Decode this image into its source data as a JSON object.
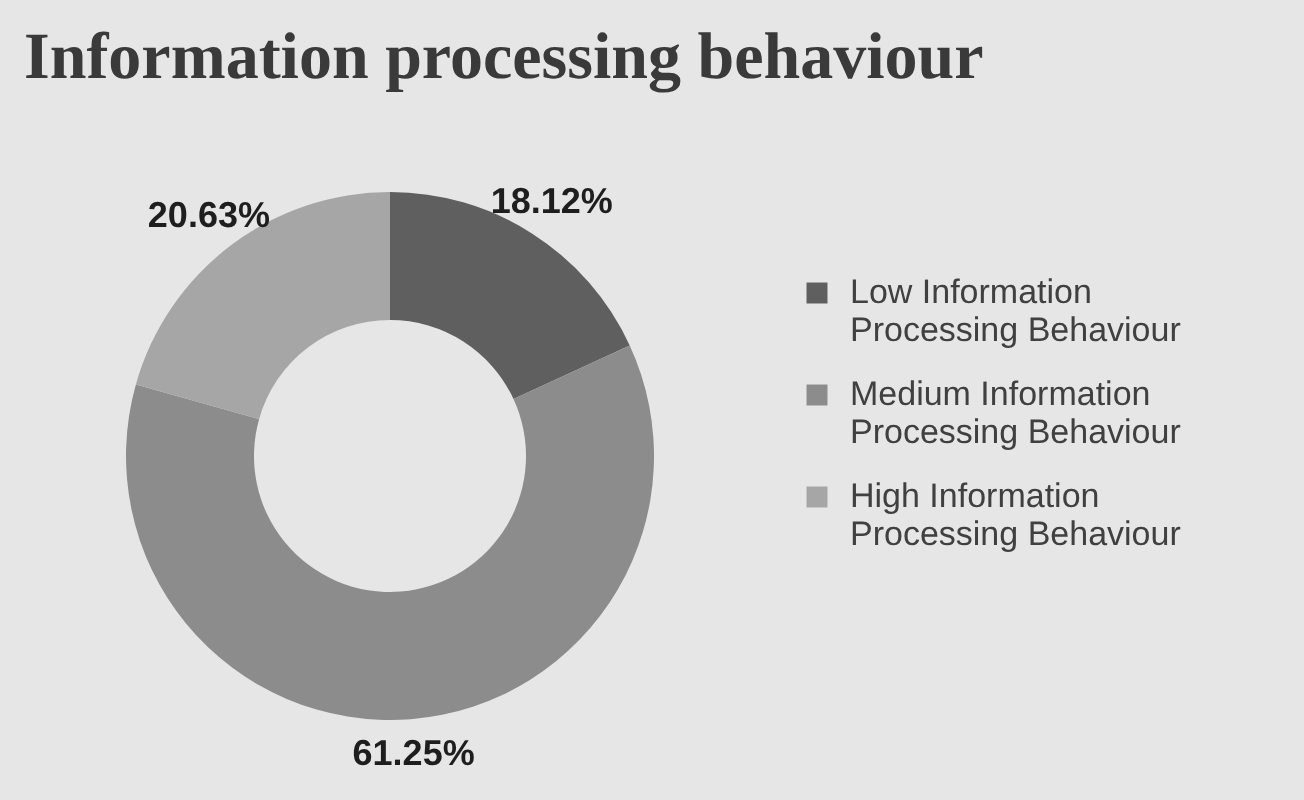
{
  "chart_data": {
    "type": "donut",
    "title": "Information processing behaviour",
    "categories": [
      "Low Information Processing Behaviour",
      "Medium Information Processing Behaviour",
      "High Information Processing Behaviour"
    ],
    "values": [
      18.12,
      61.25,
      20.63
    ],
    "colors": [
      "#5f5f5f",
      "#8c8c8c",
      "#a6a6a6"
    ],
    "value_labels": [
      "18.12%",
      "61.25%",
      "20.63%"
    ],
    "legend": "right"
  }
}
